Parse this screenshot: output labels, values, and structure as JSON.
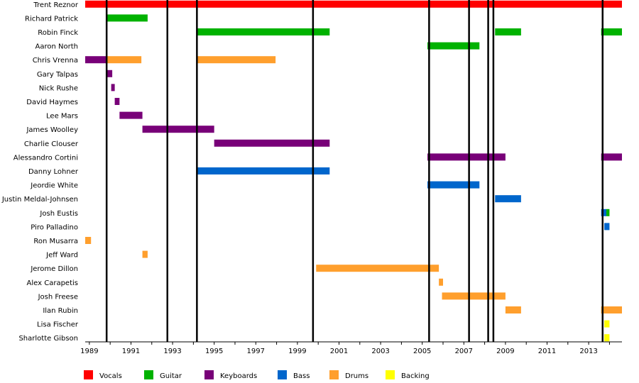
{
  "chart_data": {
    "type": "timeline",
    "title": "",
    "xlabel": "",
    "ylabel": "",
    "xlim": [
      1988.8,
      2014.6
    ],
    "x_ticks": [
      1989,
      1991,
      1993,
      1995,
      1997,
      1999,
      2001,
      2003,
      2005,
      2007,
      2009,
      2011,
      2013
    ],
    "grid": false,
    "legend_position": "bottom",
    "categories": [
      {
        "key": "vocals",
        "label": "Vocals",
        "color": "#ff0000"
      },
      {
        "key": "guitar",
        "label": "Guitar",
        "color": "#00b200"
      },
      {
        "key": "keyboards",
        "label": "Keyboards",
        "color": "#780078"
      },
      {
        "key": "bass",
        "label": "Bass",
        "color": "#0066cc"
      },
      {
        "key": "drums",
        "label": "Drums",
        "color": "#ff9f2d"
      },
      {
        "key": "backing",
        "label": "Backing",
        "color": "#ffff00"
      }
    ],
    "release_lines": [
      1989.83,
      1992.75,
      1994.17,
      1999.75,
      2005.33,
      2007.25,
      2008.17,
      2008.42,
      2013.67
    ],
    "members": [
      {
        "name": "Trent Reznor",
        "spans": [
          {
            "role": "vocals",
            "start": 1988.8,
            "end": 2014.6
          }
        ]
      },
      {
        "name": "Richard Patrick",
        "spans": [
          {
            "role": "guitar",
            "start": 1989.83,
            "end": 1991.8
          }
        ]
      },
      {
        "name": "Robin Finck",
        "spans": [
          {
            "role": "guitar",
            "start": 1994.17,
            "end": 2000.55
          },
          {
            "role": "guitar",
            "start": 2008.5,
            "end": 2009.75
          },
          {
            "role": "guitar",
            "start": 2013.6,
            "end": 2014.6
          }
        ]
      },
      {
        "name": "Aaron North",
        "spans": [
          {
            "role": "guitar",
            "start": 2005.25,
            "end": 2007.75
          }
        ]
      },
      {
        "name": "Chris Vrenna",
        "spans": [
          {
            "role": "keyboards",
            "start": 1988.8,
            "end": 1989.83
          },
          {
            "role": "drums",
            "start": 1989.83,
            "end": 1991.5
          },
          {
            "role": "drums",
            "start": 1994.17,
            "end": 1997.95
          }
        ]
      },
      {
        "name": "Gary Talpas",
        "spans": [
          {
            "role": "keyboards",
            "start": 1989.83,
            "end": 1990.1
          }
        ]
      },
      {
        "name": "Nick Rushe",
        "spans": [
          {
            "role": "keyboards",
            "start": 1990.05,
            "end": 1990.22
          }
        ]
      },
      {
        "name": "David Haymes",
        "spans": [
          {
            "role": "keyboards",
            "start": 1990.22,
            "end": 1990.45
          }
        ]
      },
      {
        "name": "Lee Mars",
        "spans": [
          {
            "role": "keyboards",
            "start": 1990.45,
            "end": 1991.55
          }
        ]
      },
      {
        "name": "James Woolley",
        "spans": [
          {
            "role": "keyboards",
            "start": 1991.55,
            "end": 1995.0
          }
        ]
      },
      {
        "name": "Charlie Clouser",
        "spans": [
          {
            "role": "keyboards",
            "start": 1995.0,
            "end": 2000.55
          }
        ]
      },
      {
        "name": "Alessandro Cortini",
        "spans": [
          {
            "role": "keyboards",
            "start": 2005.25,
            "end": 2009.0
          },
          {
            "role": "keyboards",
            "start": 2013.6,
            "end": 2014.6
          }
        ]
      },
      {
        "name": "Danny Lohner",
        "spans": [
          {
            "role": "bass",
            "start": 1994.17,
            "end": 2000.55
          }
        ]
      },
      {
        "name": "Jeordie White",
        "spans": [
          {
            "role": "bass",
            "start": 2005.25,
            "end": 2007.75
          }
        ]
      },
      {
        "name": "Justin Meldal-Johnsen",
        "spans": [
          {
            "role": "bass",
            "start": 2008.5,
            "end": 2009.75
          }
        ]
      },
      {
        "name": "Josh Eustis",
        "spans": [
          {
            "role": "bass",
            "start": 2013.6,
            "end": 2013.85
          },
          {
            "role": "guitar",
            "start": 2013.85,
            "end": 2014.0
          }
        ]
      },
      {
        "name": "Piro Palladino",
        "spans": [
          {
            "role": "bass",
            "start": 2013.75,
            "end": 2014.0
          }
        ]
      },
      {
        "name": "Ron Musarra",
        "spans": [
          {
            "role": "drums",
            "start": 1988.8,
            "end": 1989.08
          }
        ]
      },
      {
        "name": "Jeff Ward",
        "spans": [
          {
            "role": "drums",
            "start": 1991.55,
            "end": 1991.8
          }
        ]
      },
      {
        "name": "Jerome Dillon",
        "spans": [
          {
            "role": "drums",
            "start": 1999.9,
            "end": 2005.8
          }
        ]
      },
      {
        "name": "Alex Carapetis",
        "spans": [
          {
            "role": "drums",
            "start": 2005.8,
            "end": 2006.0
          }
        ]
      },
      {
        "name": "Josh Freese",
        "spans": [
          {
            "role": "drums",
            "start": 2005.95,
            "end": 2009.0
          }
        ]
      },
      {
        "name": "Ilan Rubin",
        "spans": [
          {
            "role": "drums",
            "start": 2009.0,
            "end": 2009.75
          },
          {
            "role": "drums",
            "start": 2013.6,
            "end": 2014.6
          }
        ]
      },
      {
        "name": "Lisa Fischer",
        "spans": [
          {
            "role": "backing",
            "start": 2013.75,
            "end": 2014.0
          }
        ]
      },
      {
        "name": "Sharlotte Gibson",
        "spans": [
          {
            "role": "backing",
            "start": 2013.75,
            "end": 2014.0
          }
        ]
      }
    ]
  }
}
